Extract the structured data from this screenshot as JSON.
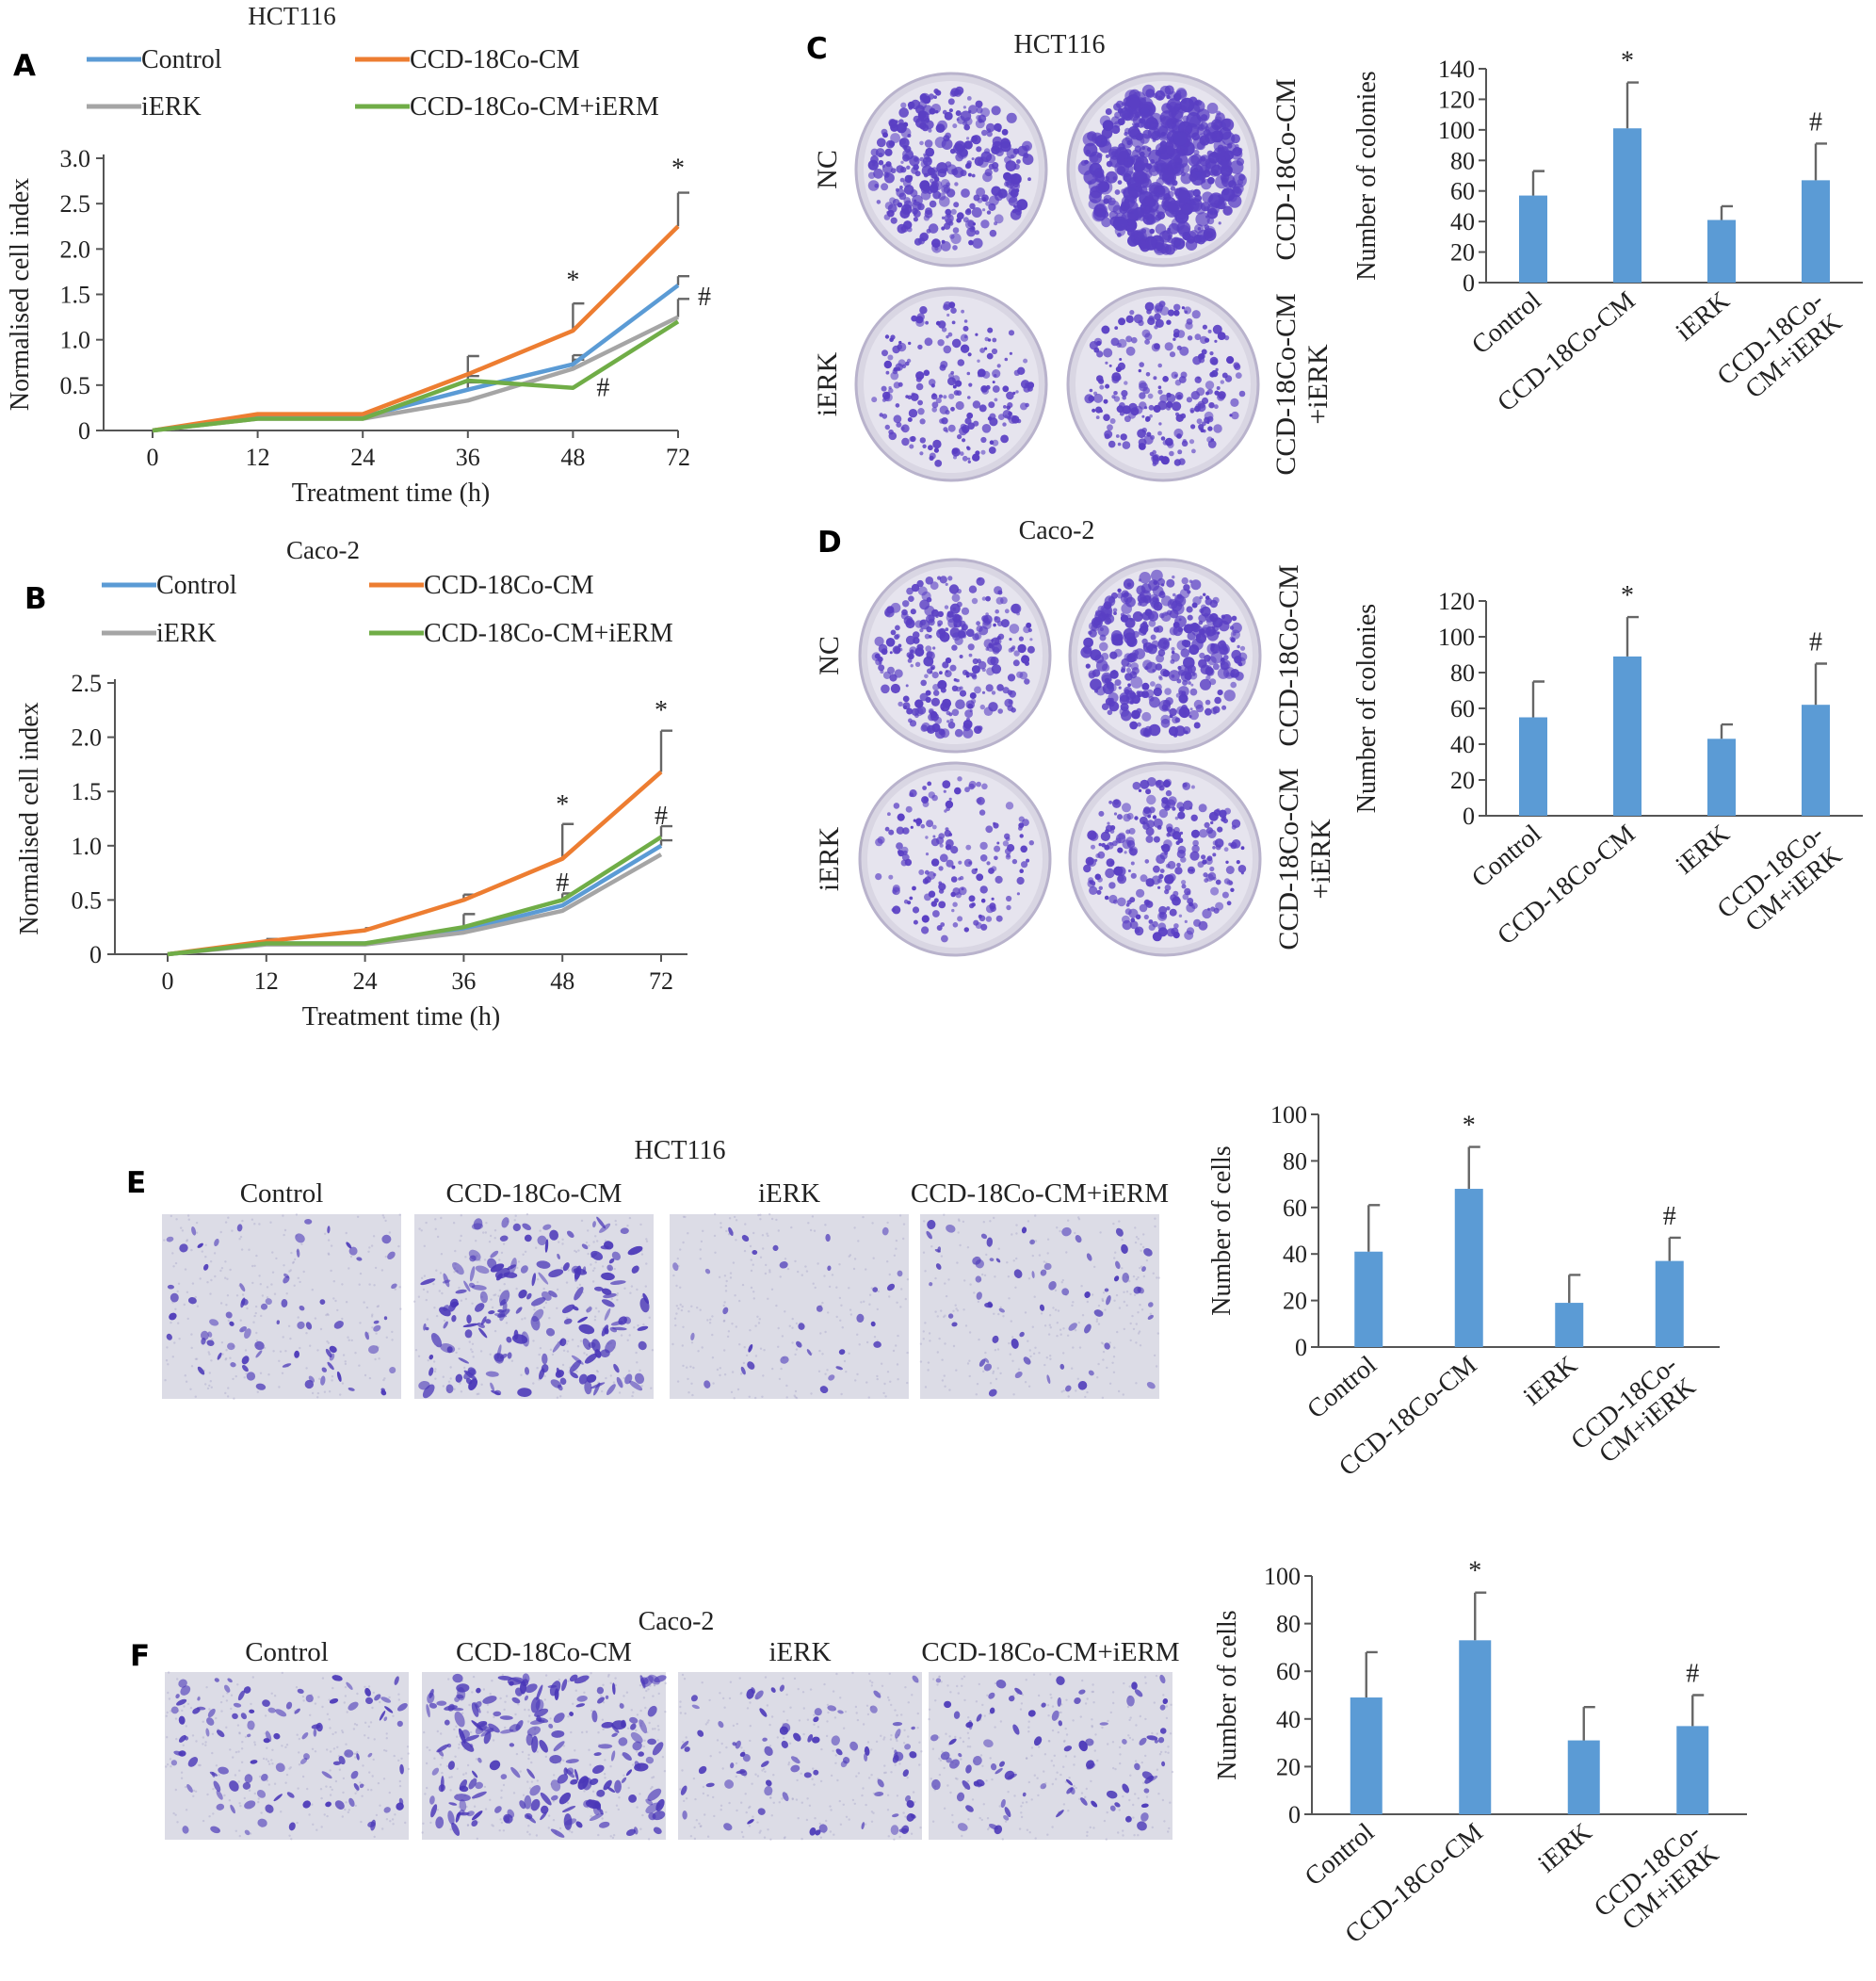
{
  "colors": {
    "control": "#5b9bd5",
    "cm": "#ed7d31",
    "ierk": "#a5a5a5",
    "cm_ierm": "#70ad47",
    "bar": "#5b9bd5",
    "crystal_violet": "#5a3fc4"
  },
  "panels": {
    "A": "A",
    "B": "B",
    "C": "C",
    "D": "D",
    "E": "E",
    "F": "F"
  },
  "chart_data": [
    {
      "id": "A",
      "type": "line",
      "title": "HCT116",
      "xlabel": "Treatment time (h)",
      "ylabel": "Normalised cell index",
      "x": [
        0,
        12,
        24,
        36,
        48,
        72
      ],
      "x_ticks": [
        "0",
        "12",
        "24",
        "36",
        "48",
        "72"
      ],
      "ylim": [
        0,
        3.0
      ],
      "y_ticks": [
        "0",
        "0.5",
        "1.0",
        "1.5",
        "2.0",
        "2.5",
        "3.0"
      ],
      "legend": [
        "Control",
        "CCD-18Co-CM",
        "iERK",
        "CCD-18Co-CM+iERM"
      ],
      "series": [
        {
          "name": "Control",
          "color_key": "control",
          "values": [
            0,
            0.15,
            0.15,
            0.45,
            0.73,
            1.6
          ],
          "err": [
            0,
            0,
            0,
            0.08,
            0.1,
            0.1
          ]
        },
        {
          "name": "CCD-18Co-CM",
          "color_key": "cm",
          "values": [
            0,
            0.18,
            0.18,
            0.62,
            1.1,
            2.25
          ],
          "err": [
            0,
            0,
            0,
            0.2,
            0.3,
            0.37
          ]
        },
        {
          "name": "iERK",
          "color_key": "ierk",
          "values": [
            0,
            0.13,
            0.13,
            0.33,
            0.68,
            1.25
          ],
          "err": [
            0,
            0,
            0,
            0,
            0.1,
            0.2
          ]
        },
        {
          "name": "CCD-18Co-CM+iERM",
          "color_key": "cm_ierm",
          "values": [
            0,
            0.13,
            0.13,
            0.55,
            0.47,
            1.2
          ],
          "err": [
            0,
            0,
            0,
            0.05,
            0,
            0
          ]
        }
      ],
      "annotations": [
        {
          "text": "*",
          "x": 48,
          "y": 1.56
        },
        {
          "text": "*",
          "x": 72,
          "y": 2.8
        },
        {
          "text": "#",
          "x": 72,
          "y": 1.38,
          "dx": 28
        },
        {
          "text": "#",
          "x": 48,
          "y": 0.38,
          "dx": 32
        }
      ]
    },
    {
      "id": "B",
      "type": "line",
      "title": "Caco-2",
      "xlabel": "Treatment time (h)",
      "ylabel": "Normalised cell index",
      "x": [
        0,
        12,
        24,
        36,
        48,
        72
      ],
      "x_ticks": [
        "0",
        "12",
        "24",
        "36",
        "48",
        "72"
      ],
      "ylim": [
        0,
        2.5
      ],
      "y_ticks": [
        "0",
        "0.5",
        "1.0",
        "1.5",
        "2.0",
        "2.5"
      ],
      "legend": [
        "Control",
        "CCD-18Co-CM",
        "iERK",
        "CCD-18Co-CM+iERM"
      ],
      "series": [
        {
          "name": "Control",
          "color_key": "control",
          "values": [
            0,
            0.1,
            0.1,
            0.22,
            0.45,
            1.0
          ],
          "err": [
            0,
            0,
            0,
            0,
            0,
            0.05
          ]
        },
        {
          "name": "CCD-18Co-CM",
          "color_key": "cm",
          "values": [
            0,
            0.12,
            0.22,
            0.5,
            0.88,
            1.68
          ],
          "err": [
            0,
            0.02,
            0.02,
            0.05,
            0.32,
            0.38
          ]
        },
        {
          "name": "iERK",
          "color_key": "ierk",
          "values": [
            0,
            0.09,
            0.09,
            0.2,
            0.4,
            0.92
          ],
          "err": [
            0,
            0,
            0,
            0,
            0,
            0
          ]
        },
        {
          "name": "CCD-18Co-CM+iERM",
          "color_key": "cm_ierm",
          "values": [
            0,
            0.1,
            0.1,
            0.25,
            0.5,
            1.08
          ],
          "err": [
            0,
            0,
            0,
            0.12,
            0.06,
            0.1
          ]
        }
      ],
      "annotations": [
        {
          "text": "*",
          "x": 48,
          "y": 1.3
        },
        {
          "text": "*",
          "x": 72,
          "y": 2.17
        },
        {
          "text": "#",
          "x": 48,
          "y": 0.58
        },
        {
          "text": "#",
          "x": 72,
          "y": 1.2
        }
      ]
    },
    {
      "id": "C",
      "type": "bar",
      "ylabel": "Number of colonies",
      "categories": [
        "Control",
        "CCD-18Co-CM",
        "iERK",
        "CCD-18Co-\nCM+iERK"
      ],
      "values": [
        57,
        101,
        41,
        67
      ],
      "err": [
        16,
        30,
        9,
        24
      ],
      "ylim": [
        0,
        140
      ],
      "y_ticks": [
        "0",
        "20",
        "40",
        "60",
        "80",
        "100",
        "120",
        "140"
      ],
      "marks": [
        "",
        "*",
        "",
        "#"
      ]
    },
    {
      "id": "D",
      "type": "bar",
      "ylabel": "Number of colonies",
      "categories": [
        "Control",
        "CCD-18Co-CM",
        "iERK",
        "CCD-18Co-\nCM+iERK"
      ],
      "values": [
        55,
        89,
        43,
        62
      ],
      "err": [
        20,
        22,
        8,
        23
      ],
      "ylim": [
        0,
        120
      ],
      "y_ticks": [
        "0",
        "20",
        "40",
        "60",
        "80",
        "100",
        "120"
      ],
      "marks": [
        "",
        "*",
        "",
        "#"
      ]
    },
    {
      "id": "E",
      "type": "bar",
      "ylabel": "Number of cells",
      "categories": [
        "Control",
        "CCD-18Co-CM",
        "iERK",
        "CCD-18Co-\nCM+iERK"
      ],
      "values": [
        41,
        68,
        19,
        37
      ],
      "err": [
        20,
        18,
        12,
        10
      ],
      "ylim": [
        0,
        100
      ],
      "y_ticks": [
        "0",
        "20",
        "40",
        "60",
        "80",
        "100"
      ],
      "marks": [
        "",
        "*",
        "",
        "#"
      ]
    },
    {
      "id": "F",
      "type": "bar",
      "ylabel": "Number of cells",
      "categories": [
        "Control",
        "CCD-18Co-CM",
        "iERK",
        "CCD-18Co-\nCM+iERK"
      ],
      "values": [
        49,
        73,
        31,
        37
      ],
      "err": [
        19,
        20,
        14,
        13
      ],
      "ylim": [
        0,
        100
      ],
      "y_ticks": [
        "0",
        "20",
        "40",
        "60",
        "80",
        "100"
      ],
      "marks": [
        "",
        "*",
        "",
        "#"
      ]
    }
  ],
  "colony_plates": {
    "C": {
      "title": "HCT116",
      "row_labels": [
        "NC",
        "iERK"
      ],
      "col_labels": [
        "CCD-18Co-CM",
        "CCD-18Co-CM\n+iERK"
      ],
      "plates": [
        {
          "name": "NC",
          "density": 0.55
        },
        {
          "name": "CCD-18Co-CM",
          "density": 1.0
        },
        {
          "name": "iERK",
          "density": 0.3
        },
        {
          "name": "CCD-18Co-CM+iERK",
          "density": 0.35
        }
      ]
    },
    "D": {
      "title": "Caco-2",
      "row_labels": [
        "NC",
        "iERK"
      ],
      "col_labels": [
        "CCD-18Co-CM",
        "CCD-18Co-CM\n+iERK"
      ],
      "plates": [
        {
          "name": "NC",
          "density": 0.45
        },
        {
          "name": "CCD-18Co-CM",
          "density": 0.65
        },
        {
          "name": "iERK",
          "density": 0.22
        },
        {
          "name": "CCD-18Co-CM+iERK",
          "density": 0.4
        }
      ]
    }
  },
  "transwell": {
    "E": {
      "title": "HCT116",
      "labels": [
        "Control",
        "CCD-18Co-CM",
        "iERK",
        "CCD-18Co-CM+iERM"
      ],
      "densities": [
        0.35,
        0.9,
        0.12,
        0.3
      ]
    },
    "F": {
      "title": "Caco-2",
      "labels": [
        "Control",
        "CCD-18Co-CM",
        "iERK",
        "CCD-18Co-CM+iERM"
      ],
      "densities": [
        0.5,
        1.0,
        0.38,
        0.42
      ]
    }
  }
}
